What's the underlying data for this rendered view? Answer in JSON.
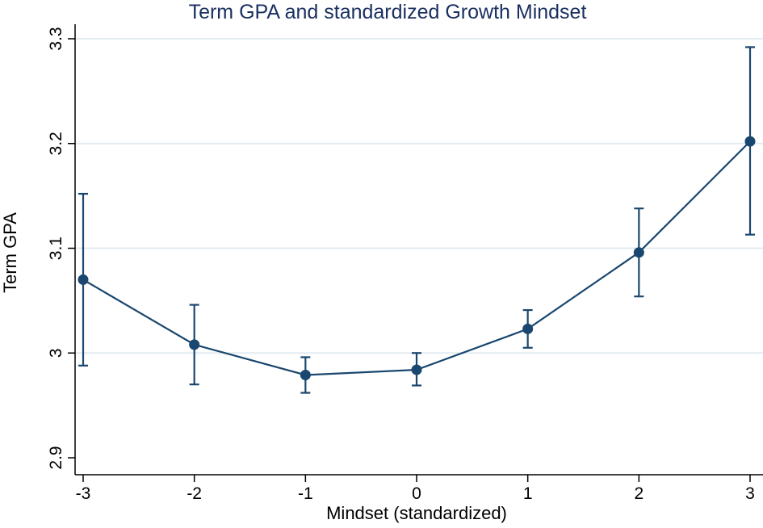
{
  "chart_data": {
    "type": "line",
    "title": "Term GPA and standardized Growth Mindset",
    "xlabel": "Mindset (standardized)",
    "ylabel": "Term GPA",
    "xlim": [
      -3,
      3
    ],
    "ylim": [
      2.9,
      3.3
    ],
    "x_ticks": [
      -3,
      -2,
      -1,
      0,
      1,
      2,
      3
    ],
    "x_tick_labels": [
      "-3",
      "-2",
      "-1",
      "0",
      "1",
      "2",
      "3"
    ],
    "y_ticks": [
      2.9,
      3.0,
      3.1,
      3.2,
      3.3
    ],
    "y_tick_labels": [
      "2.9",
      "3",
      "3.1",
      "3.2",
      "3.3"
    ],
    "grid": "horizontal",
    "series": [
      {
        "name": "Term GPA",
        "x": [
          -3,
          -2,
          -1,
          0,
          1,
          2,
          3
        ],
        "y": [
          3.07,
          3.008,
          2.979,
          2.984,
          3.023,
          3.096,
          3.202
        ],
        "ci_lower": [
          2.988,
          2.97,
          2.962,
          2.969,
          3.005,
          3.054,
          3.113
        ],
        "ci_upper": [
          3.152,
          3.046,
          2.996,
          3.0,
          3.041,
          3.138,
          3.292
        ]
      }
    ],
    "colors": {
      "series": "#1a476f",
      "title": "#1a3060",
      "grid": "#e3ecf1",
      "axis": "#000000"
    }
  }
}
